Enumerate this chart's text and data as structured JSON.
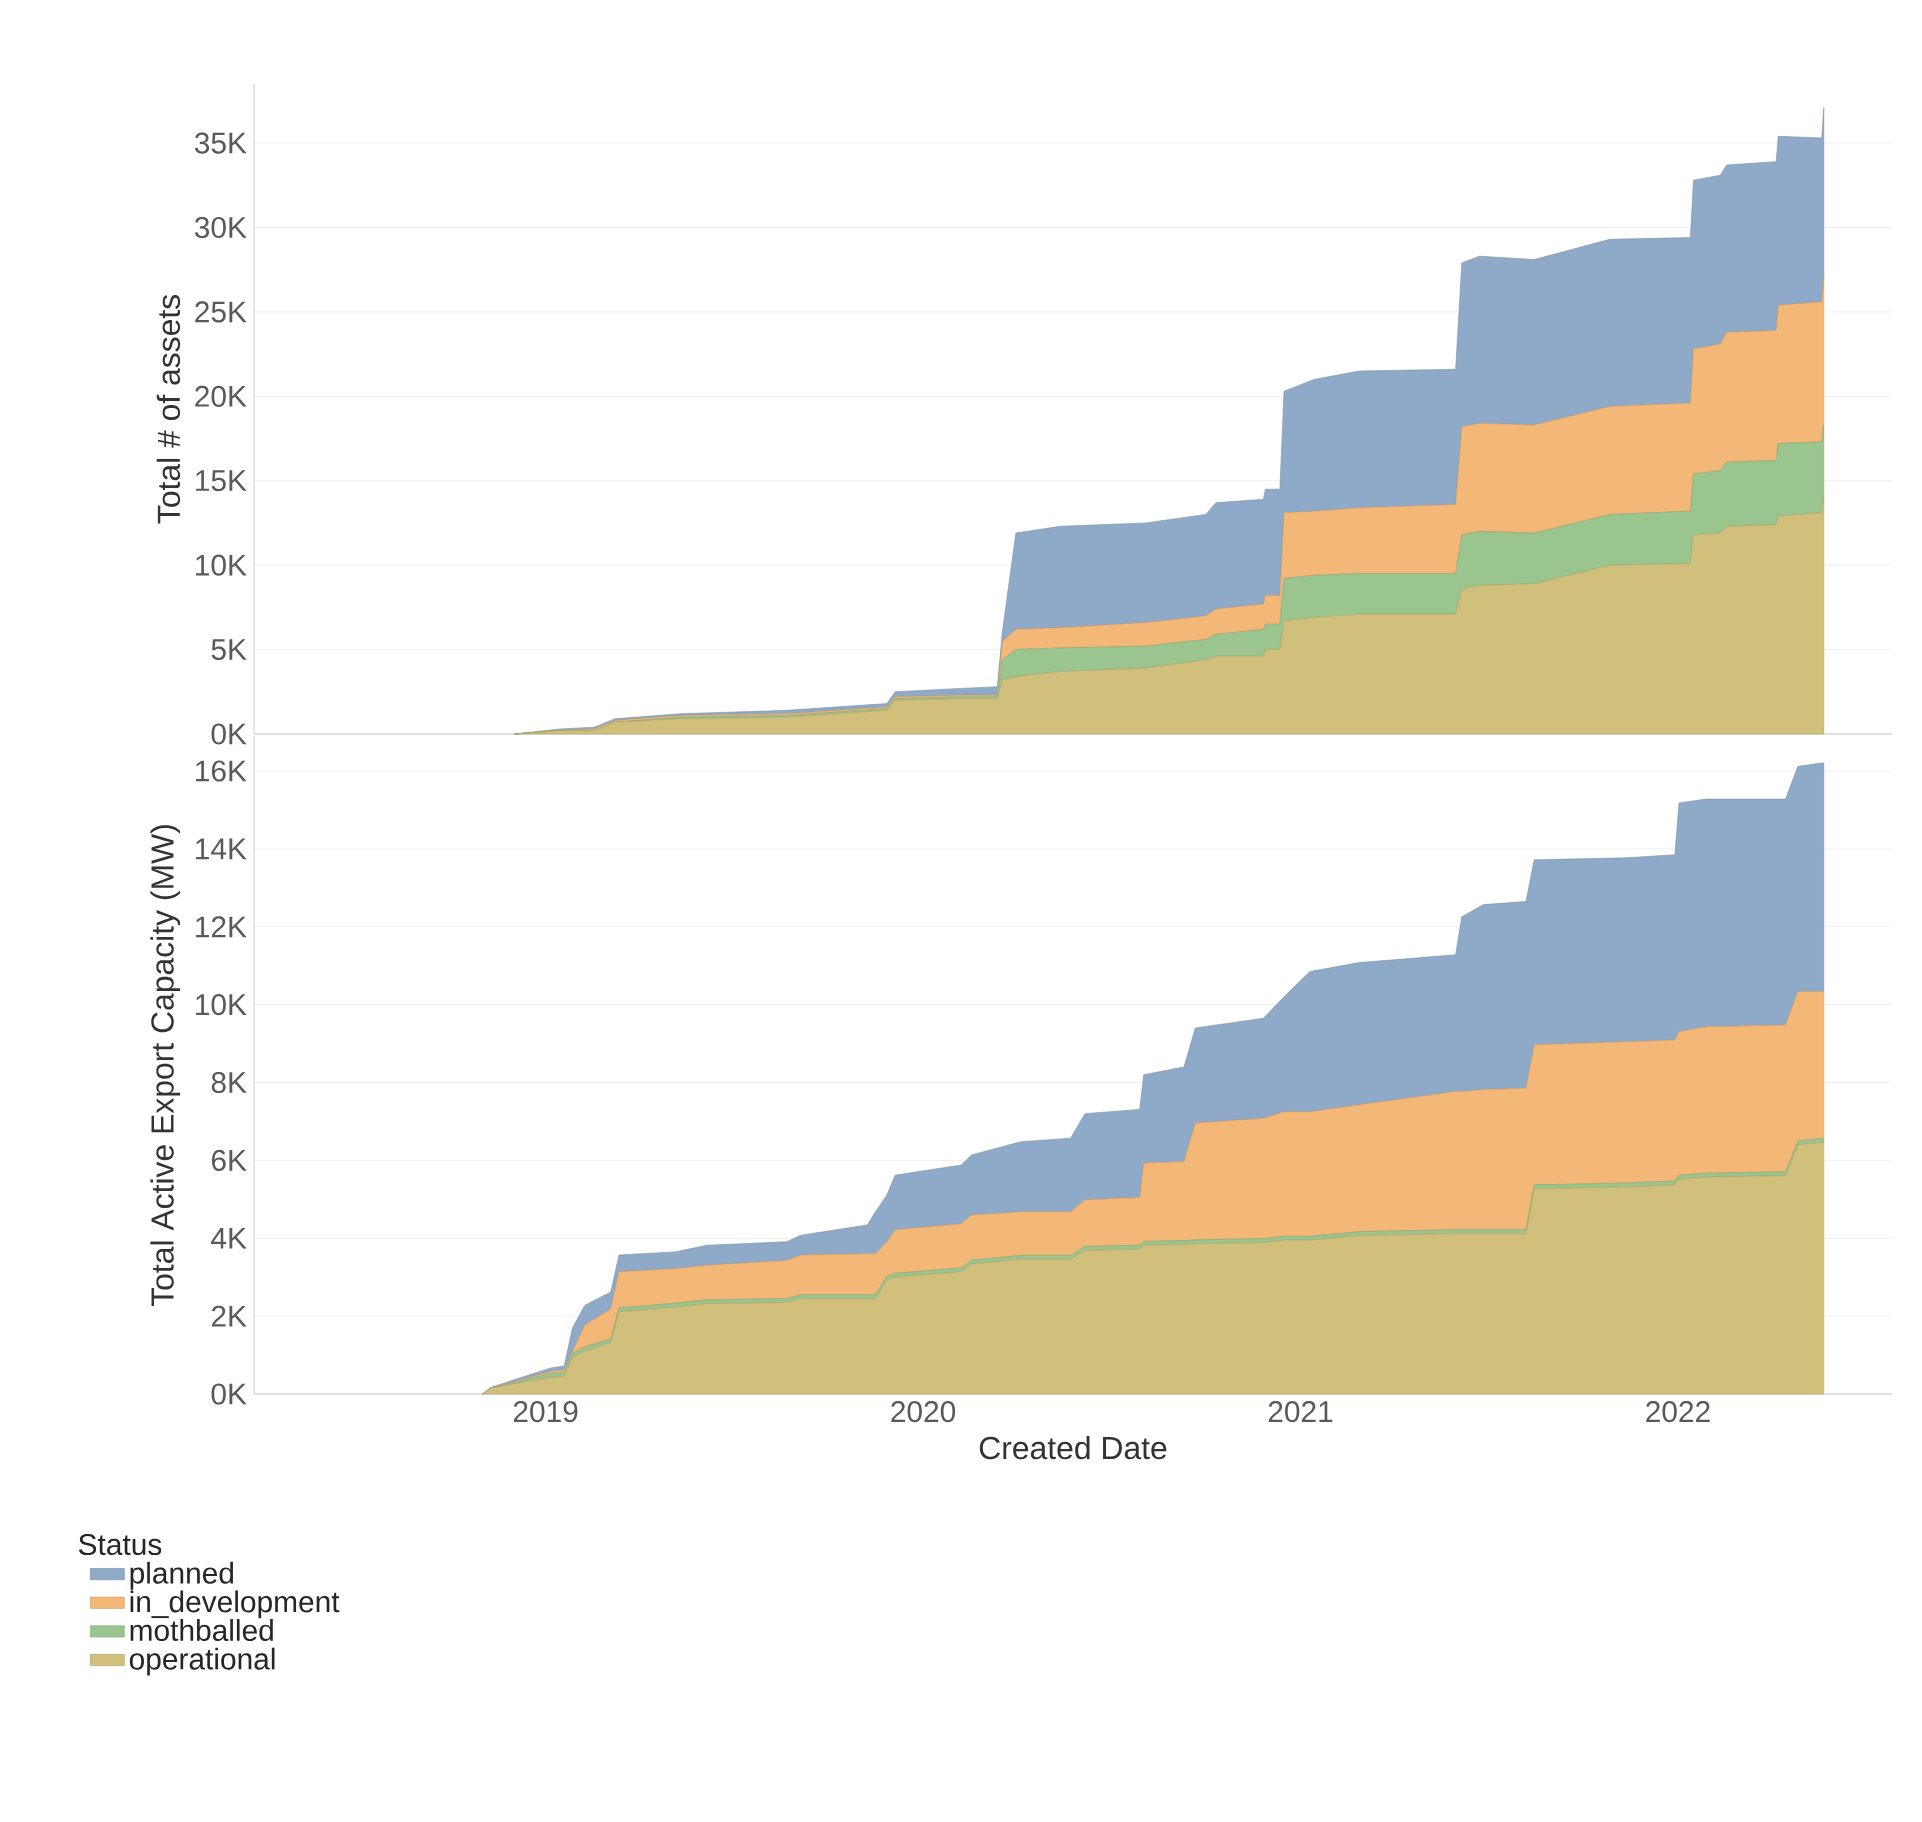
{
  "chart_data": [
    {
      "type": "area",
      "stacked": true,
      "ylabel": "Total # of assets",
      "grid": "y",
      "tick_labels": "y",
      "xlim": [
        "2018-03-25",
        "2022-07-27"
      ],
      "xticks": [
        {
          "value": "2019-01-01",
          "label": null
        },
        {
          "value": "2020-01-01",
          "label": null
        },
        {
          "value": "2021-01-01",
          "label": null
        },
        {
          "value": "2022-01-01",
          "label": null
        }
      ],
      "ylim": [
        0,
        38500
      ],
      "yticks": [
        {
          "value": 0,
          "label": "0K"
        },
        {
          "value": 5000,
          "label": "5K"
        },
        {
          "value": 10000,
          "label": "10K"
        },
        {
          "value": 15000,
          "label": "15K"
        },
        {
          "value": 20000,
          "label": "20K"
        },
        {
          "value": 25000,
          "label": "25K"
        },
        {
          "value": 30000,
          "label": "30K"
        },
        {
          "value": 35000,
          "label": "35K"
        }
      ],
      "x": [
        "2018-12-02",
        "2019-01-15",
        "2019-02-17",
        "2019-03-09",
        "2019-05-12",
        "2019-08-22",
        "2019-11-27",
        "2019-12-05",
        "2020-02-07",
        "2020-03-13",
        "2020-03-18",
        "2020-03-31",
        "2020-05-13",
        "2020-08-04",
        "2020-10-01",
        "2020-10-11",
        "2020-11-26",
        "2020-11-28",
        "2020-12-12",
        "2020-12-16",
        "2021-01-14",
        "2021-02-27",
        "2021-05-31",
        "2021-06-06",
        "2021-06-23",
        "2021-08-15",
        "2021-10-27",
        "2022-01-13",
        "2022-01-16",
        "2022-02-11",
        "2022-02-17",
        "2022-04-06",
        "2022-04-08",
        "2022-05-20",
        "2022-05-22"
      ],
      "series": [
        {
          "color": "#d1c07b",
          "values": [
            0,
            200,
            200,
            700,
            900,
            1000,
            1400,
            2000,
            2100,
            2100,
            3200,
            3400,
            3700,
            3900,
            4400,
            4600,
            4600,
            5000,
            5000,
            6700,
            6900,
            7100,
            7100,
            8600,
            8800,
            8900,
            10000,
            10100,
            11800,
            11900,
            12300,
            12400,
            12900,
            13100,
            14100
          ]
        },
        {
          "color": "#9ac58e",
          "values": [
            0,
            0,
            0,
            0,
            100,
            100,
            100,
            100,
            100,
            100,
            1200,
            1600,
            1400,
            1300,
            1200,
            1300,
            1600,
            1500,
            1500,
            2500,
            2500,
            2400,
            2400,
            3200,
            3200,
            3000,
            3000,
            3100,
            3600,
            3700,
            3800,
            3800,
            4300,
            4200,
            4200
          ]
        },
        {
          "color": "#f3b777",
          "values": [
            0,
            0,
            100,
            100,
            100,
            100,
            100,
            100,
            100,
            100,
            1100,
            1200,
            1200,
            1400,
            1400,
            1500,
            1500,
            1700,
            1700,
            3900,
            3800,
            3900,
            4100,
            6400,
            6400,
            6400,
            6400,
            6400,
            7400,
            7500,
            7700,
            7700,
            8200,
            8300,
            8900
          ]
        },
        {
          "color": "#8eaac8",
          "values": [
            0,
            100,
            100,
            100,
            100,
            200,
            200,
            300,
            400,
            500,
            600,
            5700,
            6000,
            5900,
            6000,
            6300,
            6200,
            6300,
            6300,
            7200,
            7800,
            8100,
            8000,
            9700,
            9900,
            9800,
            9900,
            9800,
            10000,
            10000,
            9900,
            10000,
            10000,
            9700,
            9900
          ]
        }
      ]
    },
    {
      "type": "area",
      "stacked": true,
      "xlabel": "Created Date",
      "ylabel": "Total Active Export Capacity (MW)",
      "grid": "y",
      "legend": "bottom left",
      "legend_title": "Status",
      "xlim": [
        "2018-03-25",
        "2022-07-27"
      ],
      "xticks": [
        {
          "value": "2019-01-01",
          "label": "2019"
        },
        {
          "value": "2020-01-01",
          "label": "2020"
        },
        {
          "value": "2021-01-01",
          "label": "2021"
        },
        {
          "value": "2022-01-01",
          "label": "2022"
        }
      ],
      "ylim": [
        0,
        16900
      ],
      "yticks": [
        {
          "value": 0,
          "label": "0K"
        },
        {
          "value": 2000,
          "label": "2K"
        },
        {
          "value": 4000,
          "label": "4K"
        },
        {
          "value": 6000,
          "label": "6K"
        },
        {
          "value": 8000,
          "label": "8K"
        },
        {
          "value": 10000,
          "label": "10K"
        },
        {
          "value": 12000,
          "label": "12K"
        },
        {
          "value": 14000,
          "label": "14K"
        },
        {
          "value": 16000,
          "label": "16K"
        }
      ],
      "x": [
        "2018-11-01",
        "2018-11-09",
        "2019-01-06",
        "2019-01-19",
        "2019-01-27",
        "2019-02-08",
        "2019-03-05",
        "2019-03-13",
        "2019-05-06",
        "2019-06-06",
        "2019-08-22",
        "2019-09-05",
        "2019-11-08",
        "2019-11-16",
        "2019-11-27",
        "2019-12-05",
        "2020-02-07",
        "2020-02-17",
        "2020-04-05",
        "2020-05-23",
        "2020-06-06",
        "2020-07-29",
        "2020-08-02",
        "2020-09-10",
        "2020-09-21",
        "2020-11-26",
        "2020-12-16",
        "2021-01-10",
        "2021-02-27",
        "2021-05-31",
        "2021-06-06",
        "2021-06-27",
        "2021-08-07",
        "2021-08-15",
        "2021-11-12",
        "2021-12-29",
        "2022-01-02",
        "2022-01-28",
        "2022-04-15",
        "2022-04-27",
        "2022-05-22"
      ],
      "series": [
        {
          "name": "operational",
          "color": "#d1c07b",
          "values": [
            0,
            150,
            430,
            450,
            940,
            1110,
            1320,
            2110,
            2230,
            2320,
            2350,
            2450,
            2450,
            2450,
            2920,
            3000,
            3140,
            3340,
            3460,
            3460,
            3690,
            3720,
            3820,
            3840,
            3860,
            3890,
            3950,
            3950,
            4070,
            4120,
            4120,
            4120,
            4120,
            5270,
            5320,
            5370,
            5520,
            5570,
            5610,
            6400,
            6470
          ]
        },
        {
          "name": "mothballed",
          "color": "#9ac58e",
          "values": [
            0,
            0,
            100,
            100,
            100,
            100,
            100,
            100,
            100,
            100,
            100,
            100,
            100,
            100,
            100,
            100,
            100,
            100,
            100,
            100,
            100,
            100,
            100,
            100,
            100,
            100,
            100,
            100,
            100,
            100,
            100,
            100,
            100,
            100,
            100,
            100,
            100,
            100,
            100,
            100,
            100
          ]
        },
        {
          "name": "in_development",
          "color": "#f3b777",
          "values": [
            0,
            0,
            50,
            70,
            60,
            560,
            770,
            930,
            890,
            890,
            980,
            1020,
            1050,
            1050,
            890,
            1120,
            1130,
            1160,
            1120,
            1120,
            1200,
            1230,
            2010,
            2030,
            3000,
            3090,
            3200,
            3200,
            3260,
            3550,
            3550,
            3600,
            3630,
            3600,
            3630,
            3620,
            3690,
            3760,
            3770,
            3840,
            3770
          ]
        },
        {
          "name": "planned",
          "color": "#8eaac8",
          "values": [
            0,
            20,
            90,
            100,
            600,
            510,
            430,
            430,
            430,
            510,
            480,
            510,
            740,
            1080,
            1200,
            1400,
            1510,
            1540,
            1800,
            1890,
            2210,
            2260,
            2270,
            2430,
            2440,
            2570,
            2950,
            3600,
            3650,
            3510,
            4490,
            4750,
            4800,
            4750,
            4720,
            4760,
            5870,
            5850,
            5800,
            5780,
            5870
          ]
        }
      ]
    }
  ]
}
